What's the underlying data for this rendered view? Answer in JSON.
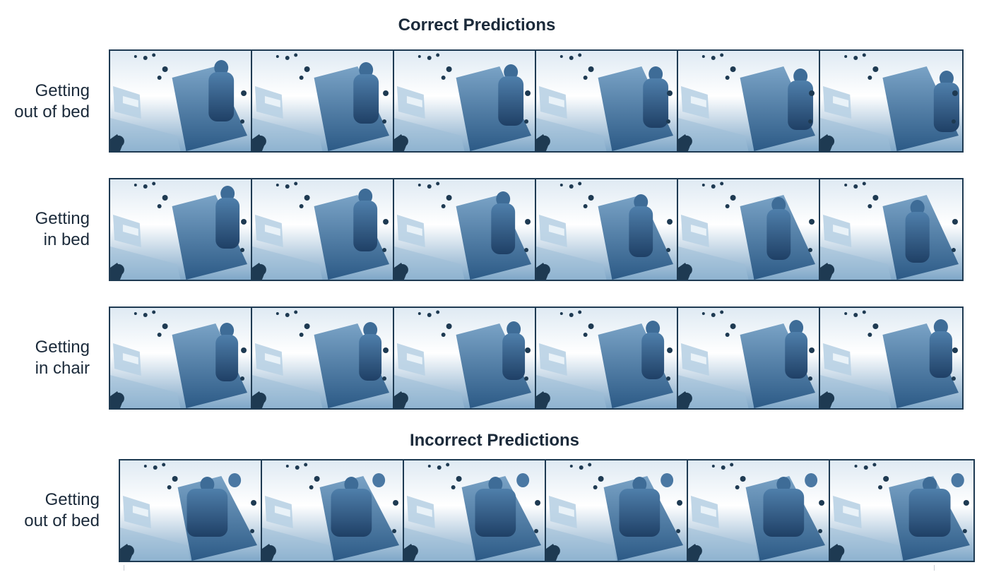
{
  "titles": {
    "correct": "Correct Predictions",
    "incorrect": "Incorrect Predictions"
  },
  "rows": [
    {
      "id": "row-1",
      "group": "correct",
      "label_line1": "Getting",
      "label_line2": "out of bed",
      "frames": 6
    },
    {
      "id": "row-2",
      "group": "correct",
      "label_line1": "Getting",
      "label_line2": "in bed",
      "frames": 6
    },
    {
      "id": "row-3",
      "group": "correct",
      "label_line1": "Getting",
      "label_line2": "in chair",
      "frames": 6
    },
    {
      "id": "row-4",
      "group": "incorrect",
      "label_line1": "Getting",
      "label_line2": "out of bed",
      "frames": 6
    }
  ],
  "colors": {
    "dark": "#1e3a52",
    "deep": "#2f5f8c",
    "mid": "#5a8cb4",
    "light": "#bcd3e6",
    "pale": "#eef5fa"
  }
}
